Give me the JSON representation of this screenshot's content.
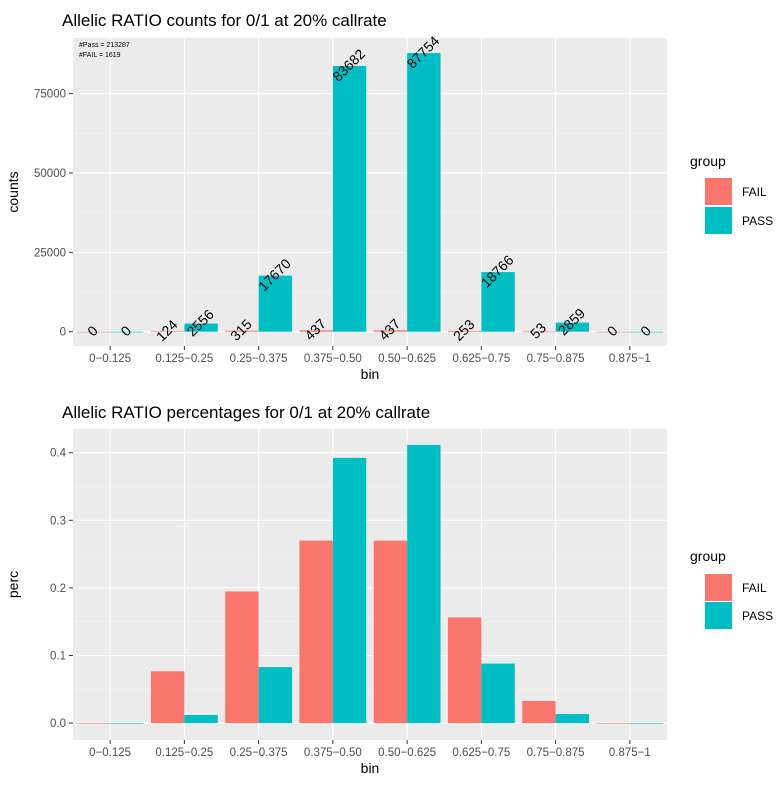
{
  "chart_data": [
    {
      "type": "bar",
      "title": "Allelic RATIO counts for 0/1 at 20% callrate",
      "xlabel": "bin",
      "ylabel": "counts",
      "categories": [
        "0−0.125",
        "0.125−0.25",
        "0.25−0.375",
        "0.375−0.50",
        "0.50−0.625",
        "0.625−0.75",
        "0.75−0.875",
        "0.875−1"
      ],
      "series": [
        {
          "name": "FAIL",
          "values": [
            0,
            124,
            315,
            437,
            437,
            253,
            53,
            0
          ],
          "color": "#F8766D"
        },
        {
          "name": "PASS",
          "values": [
            0,
            2556,
            17670,
            83682,
            87754,
            18766,
            2859,
            0
          ],
          "color": "#00BFC4"
        }
      ],
      "data_labels": {
        "FAIL": [
          "0",
          "124",
          "315",
          "437",
          "437",
          "253",
          "53",
          "0"
        ],
        "PASS": [
          "0",
          "2556",
          "17670",
          "83682",
          "87754",
          "18766",
          "2859",
          "0"
        ]
      },
      "annotations": [
        "#Pass = 213287",
        "#FAIL = 1619"
      ],
      "ylim": [
        -4500,
        92500
      ],
      "yticks": [
        0,
        25000,
        50000,
        75000
      ],
      "ytick_labels": [
        "0",
        "25000",
        "50000",
        "75000"
      ],
      "legend": {
        "title": "group",
        "position": "right"
      },
      "grid": true
    },
    {
      "type": "bar",
      "title": "Allelic RATIO percentages for 0/1 at 20% callrate",
      "xlabel": "bin",
      "ylabel": "perc",
      "categories": [
        "0−0.125",
        "0.125−0.25",
        "0.25−0.375",
        "0.375−0.50",
        "0.50−0.625",
        "0.625−0.75",
        "0.75−0.875",
        "0.875−1"
      ],
      "series": [
        {
          "name": "FAIL",
          "values": [
            0,
            0.0766,
            0.1946,
            0.2699,
            0.2699,
            0.1563,
            0.0327,
            0
          ],
          "color": "#F8766D"
        },
        {
          "name": "PASS",
          "values": [
            0,
            0.012,
            0.0828,
            0.3923,
            0.4114,
            0.088,
            0.0134,
            0
          ],
          "color": "#00BFC4"
        }
      ],
      "ylim": [
        -0.025,
        0.435
      ],
      "yticks": [
        0,
        0.1,
        0.2,
        0.3,
        0.4
      ],
      "ytick_labels": [
        "0.0",
        "0.1",
        "0.2",
        "0.3",
        "0.4"
      ],
      "legend": {
        "title": "group",
        "position": "right"
      },
      "grid": true
    }
  ],
  "colors": {
    "panel_background": "#EBEBEB",
    "grid_major": "#FFFFFF",
    "grid_minor": "#F4F4F4",
    "axis_text": "#4D4D4D",
    "text": "#000000"
  }
}
